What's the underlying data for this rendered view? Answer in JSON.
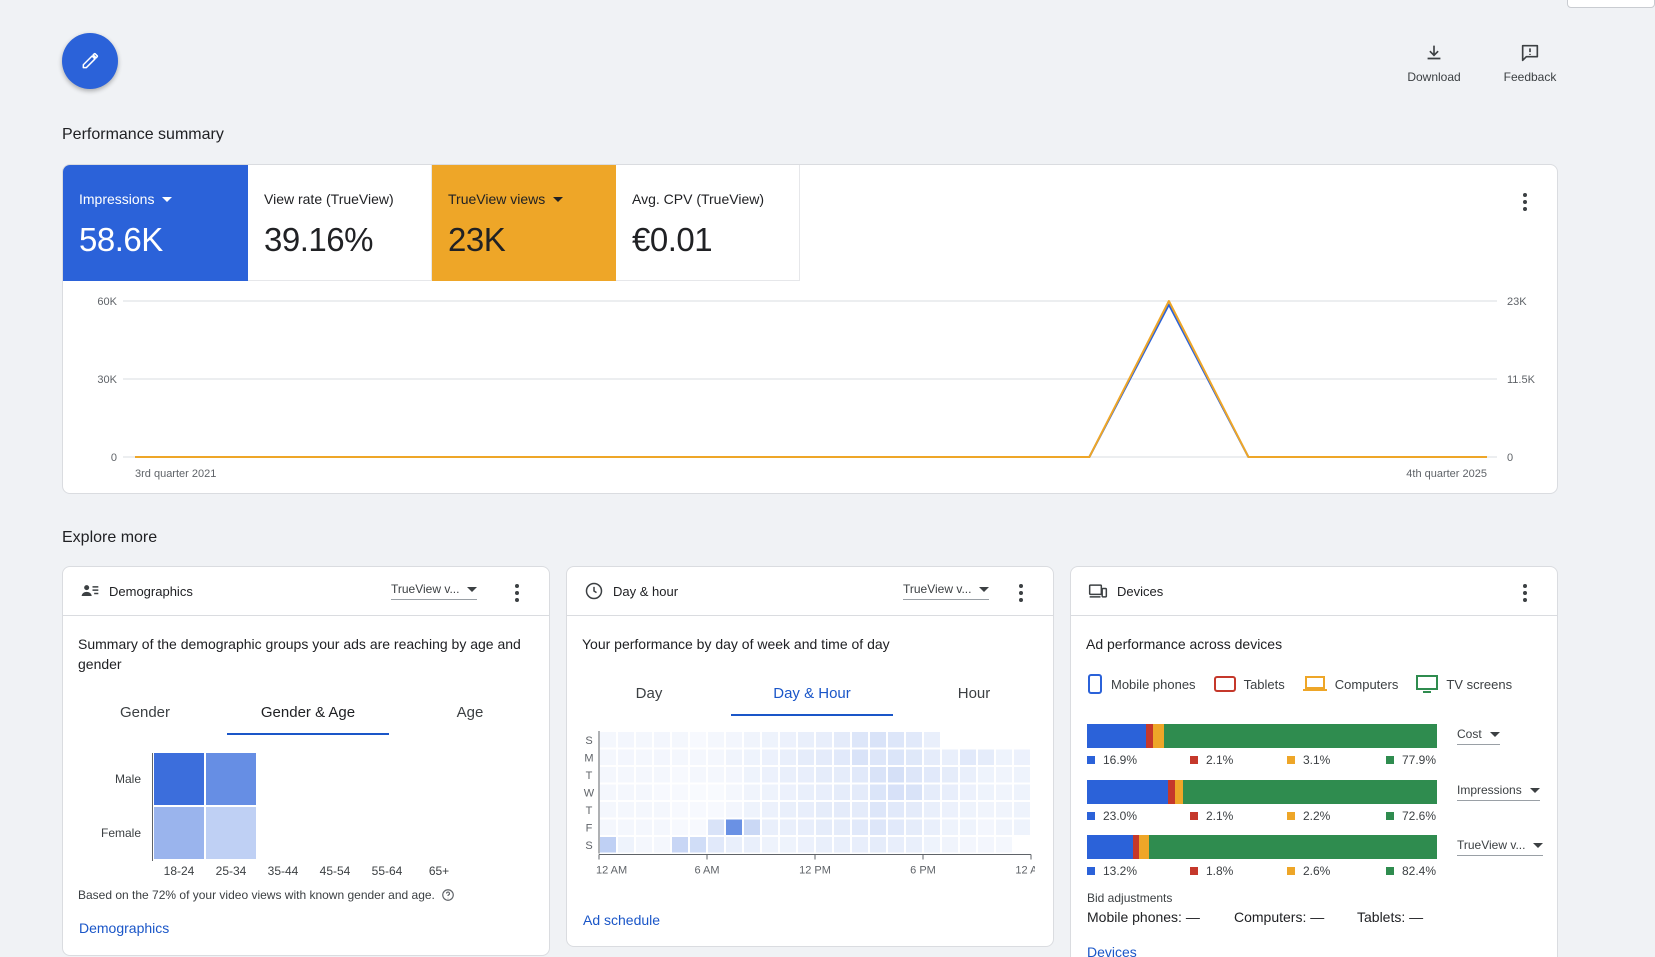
{
  "colors": {
    "blue": "#2b62d9",
    "orange": "#eea628",
    "red": "#c5382b",
    "green": "#2f8c4f",
    "link": "#1a56c8"
  },
  "header": {
    "edit_icon": "pencil-icon",
    "download_label": "Download",
    "feedback_label": "Feedback"
  },
  "performance": {
    "title": "Performance summary",
    "metrics": [
      {
        "label": "Impressions",
        "value": "58.6K",
        "selected": true
      },
      {
        "label": "View rate (TrueView)",
        "value": "39.16%",
        "selected": false
      },
      {
        "label": "TrueView views",
        "value": "23K",
        "selected": true
      },
      {
        "label": "Avg. CPV (TrueView)",
        "value": "€0.01",
        "selected": false
      }
    ]
  },
  "chart_data": {
    "type": "line",
    "title": "",
    "x_start_label": "3rd quarter 2021",
    "x_end_label": "4th quarter 2025",
    "y_left_ticks": [
      "0",
      "30K",
      "60K"
    ],
    "y_right_ticks": [
      "0",
      "11.5K",
      "23K"
    ],
    "ylim_left": [
      0,
      60000
    ],
    "ylim_right": [
      0,
      23000
    ],
    "grid": true,
    "x": [
      "2021 Q3",
      "2021 Q4",
      "2022 Q1",
      "2022 Q2",
      "2022 Q3",
      "2022 Q4",
      "2023 Q1",
      "2023 Q2",
      "2023 Q3",
      "2023 Q4",
      "2024 Q1",
      "2024 Q2",
      "2024 Q3",
      "2024 Q4",
      "2025 Q1",
      "2025 Q2",
      "2025 Q3",
      "2025 Q4"
    ],
    "series": [
      {
        "name": "Impressions",
        "axis": "left",
        "color": "#2b62d9",
        "values": [
          0,
          0,
          0,
          0,
          0,
          0,
          0,
          0,
          0,
          0,
          0,
          0,
          0,
          58600,
          0,
          0,
          0,
          0
        ]
      },
      {
        "name": "TrueView views",
        "axis": "right",
        "color": "#eea628",
        "values": [
          0,
          0,
          0,
          0,
          0,
          0,
          0,
          0,
          0,
          0,
          0,
          0,
          0,
          23000,
          0,
          0,
          0,
          0
        ]
      }
    ]
  },
  "explore": {
    "title": "Explore more",
    "demographics": {
      "title": "Demographics",
      "metric_select": "TrueView v...",
      "description": "Summary of the demographic groups your ads are reaching by age and gender",
      "tabs": [
        "Gender",
        "Gender & Age",
        "Age"
      ],
      "active_tab": 1,
      "rows": [
        "Male",
        "Female"
      ],
      "cols": [
        "18-24",
        "25-34",
        "35-44",
        "45-54",
        "55-64",
        "65+"
      ],
      "cell_opacity": [
        [
          0.92,
          0.72,
          0,
          0,
          0,
          0
        ],
        [
          0.48,
          0.3,
          0,
          0,
          0,
          0
        ]
      ],
      "note": "Based on the 72% of your video views with known gender and age.",
      "link": "Demographics"
    },
    "day_hour": {
      "title": "Day & hour",
      "metric_select": "TrueView v...",
      "description": "Your performance by day of week and time of day",
      "tabs": [
        "Day",
        "Day & Hour",
        "Hour"
      ],
      "active_tab": 1,
      "days": [
        "S",
        "M",
        "T",
        "W",
        "T",
        "F",
        "S"
      ],
      "x_ticks": [
        "12 AM",
        "6 AM",
        "12 PM",
        "6 PM",
        "12 AM"
      ],
      "heat": [
        [
          0.05,
          0.06,
          0.05,
          0.06,
          0.05,
          0.04,
          0.05,
          0.06,
          0.07,
          0.08,
          0.09,
          0.1,
          0.11,
          0.13,
          0.16,
          0.18,
          0.16,
          0.14,
          0.1,
          0,
          0,
          0,
          0,
          0
        ],
        [
          0.05,
          0.06,
          0.05,
          0.06,
          0.05,
          0.05,
          0.05,
          0.07,
          0.08,
          0.09,
          0.1,
          0.12,
          0.13,
          0.14,
          0.18,
          0.16,
          0.17,
          0.15,
          0.12,
          0.1,
          0.14,
          0.12,
          0.08,
          0.09
        ],
        [
          0.05,
          0.05,
          0.05,
          0.05,
          0.04,
          0.05,
          0.05,
          0.06,
          0.08,
          0.09,
          0.1,
          0.11,
          0.12,
          0.12,
          0.14,
          0.18,
          0.2,
          0.16,
          0.14,
          0.12,
          0.1,
          0.08,
          0.07,
          0.08
        ],
        [
          0.05,
          0.05,
          0.05,
          0.04,
          0.04,
          0.03,
          0.03,
          0.05,
          0.07,
          0.08,
          0.09,
          0.1,
          0.11,
          0.12,
          0.13,
          0.17,
          0.19,
          0.18,
          0.12,
          0.11,
          0.09,
          0.08,
          0.07,
          0.08
        ],
        [
          0.05,
          0.05,
          0.05,
          0.05,
          0.04,
          0.04,
          0.04,
          0.06,
          0.08,
          0.09,
          0.1,
          0.11,
          0.12,
          0.13,
          0.13,
          0.16,
          0.14,
          0.13,
          0.1,
          0.09,
          0.08,
          0.07,
          0.07,
          0.08
        ],
        [
          0.05,
          0.05,
          0.05,
          0.05,
          0.04,
          0.04,
          0.18,
          0.7,
          0.25,
          0.1,
          0.1,
          0.11,
          0.12,
          0.12,
          0.14,
          0.16,
          0.14,
          0.12,
          0.1,
          0.08,
          0.08,
          0.06,
          0.07,
          0.08
        ],
        [
          0.3,
          0.08,
          0.05,
          0.05,
          0.26,
          0.22,
          0.14,
          0.1,
          0.1,
          0.08,
          0.08,
          0.09,
          0.1,
          0.1,
          0.11,
          0.12,
          0.11,
          0.1,
          0.08,
          0.07,
          0.06,
          0.06,
          0.05,
          0
        ]
      ],
      "link": "Ad schedule"
    },
    "devices": {
      "title": "Devices",
      "description": "Ad performance across devices",
      "legend": [
        {
          "label": "Mobile phones",
          "color": "#2b62d9",
          "icon": "smartphone-icon"
        },
        {
          "label": "Tablets",
          "color": "#c5382b",
          "icon": "tablet-icon"
        },
        {
          "label": "Computers",
          "color": "#eea628",
          "icon": "laptop-icon"
        },
        {
          "label": "TV screens",
          "color": "#2f8c4f",
          "icon": "tv-icon"
        }
      ],
      "rows": [
        {
          "metric": "Cost",
          "values": [
            16.9,
            2.1,
            3.1,
            77.9
          ],
          "labels": [
            "16.9%",
            "2.1%",
            "3.1%",
            "77.9%"
          ]
        },
        {
          "metric": "Impressions",
          "values": [
            23.0,
            2.1,
            2.2,
            72.6
          ],
          "labels": [
            "23.0%",
            "2.1%",
            "2.2%",
            "72.6%"
          ]
        },
        {
          "metric": "TrueView v...",
          "values": [
            13.2,
            1.8,
            2.6,
            82.4
          ],
          "labels": [
            "13.2%",
            "1.8%",
            "2.6%",
            "82.4%"
          ]
        }
      ],
      "bid_title": "Bid adjustments",
      "bids": [
        "Mobile phones: —",
        "Computers: —",
        "Tablets: —"
      ],
      "link": "Devices"
    }
  }
}
